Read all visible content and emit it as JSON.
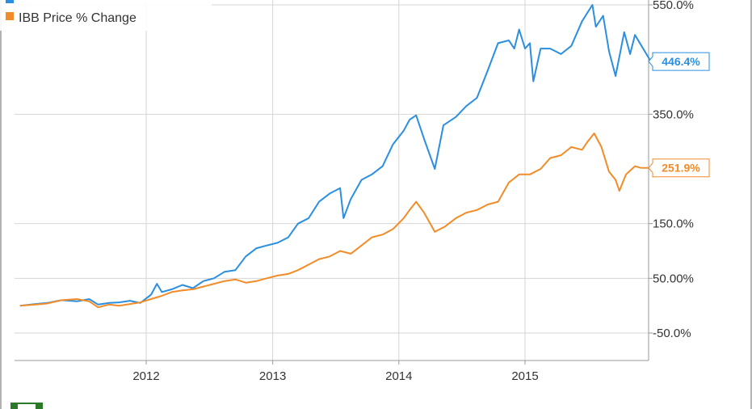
{
  "chart_data": {
    "type": "line",
    "title": "",
    "xlabel": "",
    "ylabel": "",
    "grid": true,
    "legend_position": "top-left",
    "x_axis": {
      "type": "date",
      "range": [
        "2011-01-01",
        "2015-12-31"
      ],
      "ticks": [
        {
          "value": "2012-01-01",
          "label": "2012"
        },
        {
          "value": "2013-01-01",
          "label": "2013"
        },
        {
          "value": "2014-01-01",
          "label": "2014"
        },
        {
          "value": "2015-01-01",
          "label": "2015"
        }
      ]
    },
    "y_axis": {
      "range": [
        -100,
        560
      ],
      "ticks": [
        {
          "value": 550,
          "label": "550.0%"
        },
        {
          "value": 350,
          "label": "350.0%"
        },
        {
          "value": 150,
          "label": "150.0%"
        },
        {
          "value": 50,
          "label": "50.00%"
        },
        {
          "value": -50,
          "label": "-50.0%"
        }
      ]
    },
    "series": [
      {
        "name": "",
        "color": "#2A8FE0",
        "end_label": "446.4%",
        "end_value": 446.4,
        "points": [
          [
            "2011-01-01",
            0
          ],
          [
            "2011-02-15",
            3
          ],
          [
            "2011-03-20",
            5
          ],
          [
            "2011-05-01",
            10
          ],
          [
            "2011-06-15",
            8
          ],
          [
            "2011-07-20",
            12
          ],
          [
            "2011-08-15",
            2
          ],
          [
            "2011-09-15",
            5
          ],
          [
            "2011-10-15",
            6
          ],
          [
            "2011-11-15",
            9
          ],
          [
            "2011-12-15",
            5
          ],
          [
            "2012-01-15",
            20
          ],
          [
            "2012-02-01",
            40
          ],
          [
            "2012-02-15",
            25
          ],
          [
            "2012-03-15",
            30
          ],
          [
            "2012-04-15",
            38
          ],
          [
            "2012-05-15",
            32
          ],
          [
            "2012-06-15",
            45
          ],
          [
            "2012-07-15",
            50
          ],
          [
            "2012-08-15",
            62
          ],
          [
            "2012-09-15",
            65
          ],
          [
            "2012-10-15",
            90
          ],
          [
            "2012-11-15",
            105
          ],
          [
            "2012-12-15",
            110
          ],
          [
            "2013-01-15",
            115
          ],
          [
            "2013-02-15",
            125
          ],
          [
            "2013-03-15",
            150
          ],
          [
            "2013-04-15",
            160
          ],
          [
            "2013-05-15",
            190
          ],
          [
            "2013-06-15",
            205
          ],
          [
            "2013-07-15",
            215
          ],
          [
            "2013-07-25",
            160
          ],
          [
            "2013-08-15",
            195
          ],
          [
            "2013-09-15",
            230
          ],
          [
            "2013-10-15",
            240
          ],
          [
            "2013-11-15",
            255
          ],
          [
            "2013-12-15",
            295
          ],
          [
            "2014-01-15",
            320
          ],
          [
            "2014-02-01",
            340
          ],
          [
            "2014-02-20",
            348
          ],
          [
            "2014-03-15",
            305
          ],
          [
            "2014-04-15",
            250
          ],
          [
            "2014-05-10",
            330
          ],
          [
            "2014-06-15",
            345
          ],
          [
            "2014-07-15",
            365
          ],
          [
            "2014-08-15",
            380
          ],
          [
            "2014-09-15",
            430
          ],
          [
            "2014-10-15",
            480
          ],
          [
            "2014-11-15",
            485
          ],
          [
            "2014-12-01",
            470
          ],
          [
            "2014-12-15",
            505
          ],
          [
            "2015-01-01",
            470
          ],
          [
            "2015-01-15",
            480
          ],
          [
            "2015-01-25",
            410
          ],
          [
            "2015-02-15",
            470
          ],
          [
            "2015-03-15",
            470
          ],
          [
            "2015-04-15",
            460
          ],
          [
            "2015-05-15",
            475
          ],
          [
            "2015-06-15",
            520
          ],
          [
            "2015-07-15",
            550
          ],
          [
            "2015-07-25",
            510
          ],
          [
            "2015-08-15",
            530
          ],
          [
            "2015-09-01",
            465
          ],
          [
            "2015-09-20",
            420
          ],
          [
            "2015-10-15",
            500
          ],
          [
            "2015-11-01",
            460
          ],
          [
            "2015-11-15",
            495
          ],
          [
            "2015-12-31",
            446.4
          ]
        ]
      },
      {
        "name": "IBB Price % Change",
        "color": "#F28C28",
        "end_label": "251.9%",
        "end_value": 251.9,
        "points": [
          [
            "2011-01-01",
            0
          ],
          [
            "2011-02-15",
            2
          ],
          [
            "2011-03-20",
            4
          ],
          [
            "2011-05-01",
            10
          ],
          [
            "2011-06-15",
            12
          ],
          [
            "2011-07-20",
            8
          ],
          [
            "2011-08-15",
            -3
          ],
          [
            "2011-09-15",
            2
          ],
          [
            "2011-10-15",
            0
          ],
          [
            "2011-11-15",
            3
          ],
          [
            "2011-12-15",
            6
          ],
          [
            "2012-01-15",
            12
          ],
          [
            "2012-02-15",
            18
          ],
          [
            "2012-03-15",
            25
          ],
          [
            "2012-04-15",
            28
          ],
          [
            "2012-05-15",
            30
          ],
          [
            "2012-06-15",
            35
          ],
          [
            "2012-07-15",
            40
          ],
          [
            "2012-08-15",
            45
          ],
          [
            "2012-09-15",
            48
          ],
          [
            "2012-10-15",
            42
          ],
          [
            "2012-11-15",
            45
          ],
          [
            "2012-12-15",
            50
          ],
          [
            "2013-01-15",
            55
          ],
          [
            "2013-02-15",
            58
          ],
          [
            "2013-03-15",
            65
          ],
          [
            "2013-04-15",
            75
          ],
          [
            "2013-05-15",
            85
          ],
          [
            "2013-06-15",
            90
          ],
          [
            "2013-07-15",
            100
          ],
          [
            "2013-08-15",
            95
          ],
          [
            "2013-09-15",
            110
          ],
          [
            "2013-10-15",
            125
          ],
          [
            "2013-11-15",
            130
          ],
          [
            "2013-12-15",
            140
          ],
          [
            "2014-01-15",
            160
          ],
          [
            "2014-02-01",
            175
          ],
          [
            "2014-02-20",
            190
          ],
          [
            "2014-03-15",
            170
          ],
          [
            "2014-04-15",
            135
          ],
          [
            "2014-05-15",
            145
          ],
          [
            "2014-06-15",
            160
          ],
          [
            "2014-07-15",
            170
          ],
          [
            "2014-08-15",
            175
          ],
          [
            "2014-09-15",
            185
          ],
          [
            "2014-10-15",
            190
          ],
          [
            "2014-11-15",
            225
          ],
          [
            "2014-12-15",
            240
          ],
          [
            "2015-01-15",
            240
          ],
          [
            "2015-02-15",
            250
          ],
          [
            "2015-03-15",
            270
          ],
          [
            "2015-04-15",
            275
          ],
          [
            "2015-05-15",
            290
          ],
          [
            "2015-06-15",
            285
          ],
          [
            "2015-07-01",
            300
          ],
          [
            "2015-07-20",
            315
          ],
          [
            "2015-08-10",
            290
          ],
          [
            "2015-09-01",
            245
          ],
          [
            "2015-09-20",
            230
          ],
          [
            "2015-10-01",
            210
          ],
          [
            "2015-10-20",
            240
          ],
          [
            "2015-11-15",
            255
          ],
          [
            "2015-12-01",
            252
          ],
          [
            "2015-12-31",
            251.9
          ]
        ]
      }
    ]
  }
}
